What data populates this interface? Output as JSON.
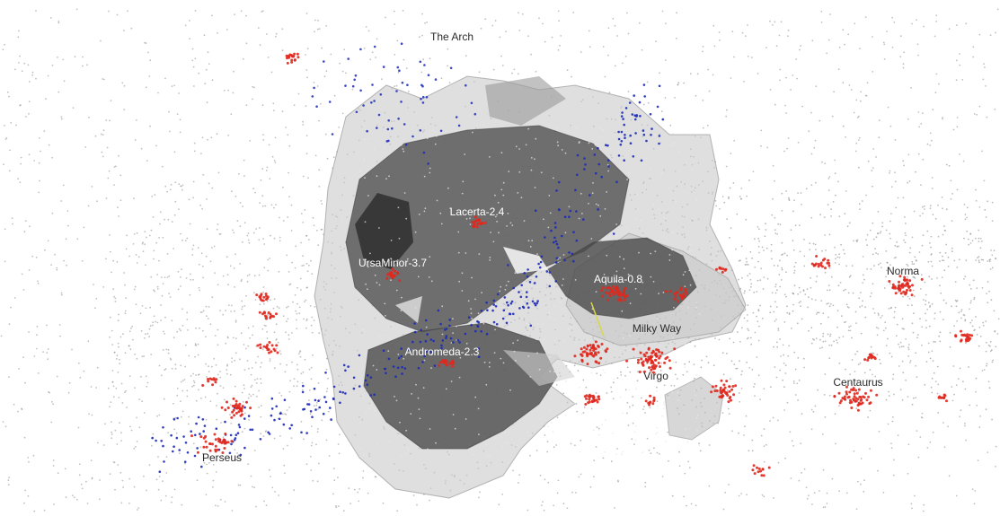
{
  "scene": {
    "background": "#ffffff",
    "colors": {
      "field_galaxies": "#8c8c8c",
      "clusters": "#e0281e",
      "flow_stream": "#1c2ab8",
      "void_surface_outer": "#c9c9c9",
      "void_surface_inner": "#4a4a4a",
      "indicator": "#d7d74a"
    },
    "labels": [
      {
        "id": "the-arch",
        "text": "The Arch"
      },
      {
        "id": "lacerta",
        "text": "Lacerta-2.4"
      },
      {
        "id": "ursa-minor",
        "text": "UrsaMinor-3.7"
      },
      {
        "id": "aquila",
        "text": "Aquila-0.8"
      },
      {
        "id": "milky-way",
        "text": "Milky Way"
      },
      {
        "id": "andromeda",
        "text": "Andromeda-2.3"
      },
      {
        "id": "virgo",
        "text": "Virgo"
      },
      {
        "id": "norma",
        "text": "Norma"
      },
      {
        "id": "centaurus",
        "text": "Centaurus"
      },
      {
        "id": "perseus",
        "text": "Perseus"
      }
    ]
  }
}
